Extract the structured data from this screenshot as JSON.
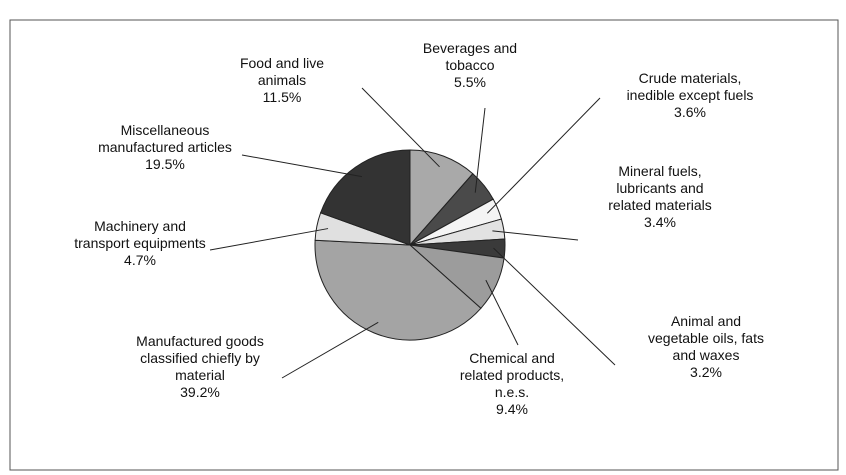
{
  "chart_data": {
    "type": "pie",
    "categories": [
      "Food and live\nanimals",
      "Beverages and\ntobacco",
      "Crude materials,\ninedible except fuels",
      "Mineral fuels,\nlubricants and\nrelated materials",
      "Animal and\nvegetable oils, fats\nand waxes",
      "Chemical and\nrelated products,\nn.e.s.",
      "Manufactured goods\nclassified chiefly by\nmaterial",
      "Machinery and\ntransport equipments",
      "Miscellaneous\nmanufactured articles"
    ],
    "values": [
      11.5,
      5.5,
      3.6,
      3.4,
      3.2,
      9.4,
      39.2,
      4.7,
      19.5
    ],
    "value_labels": [
      "11.5%",
      "5.5%",
      "3.6%",
      "3.4%",
      "3.2%",
      "9.4%",
      "39.2%",
      "4.7%",
      "19.5%"
    ],
    "colors": [
      "#a9a9a9",
      "#4a4a4a",
      "#f4f4f4",
      "#e2e2e2",
      "#3a3a3a",
      "#9c9c9c",
      "#a4a4a4",
      "#e0e0e0",
      "#333333"
    ]
  }
}
